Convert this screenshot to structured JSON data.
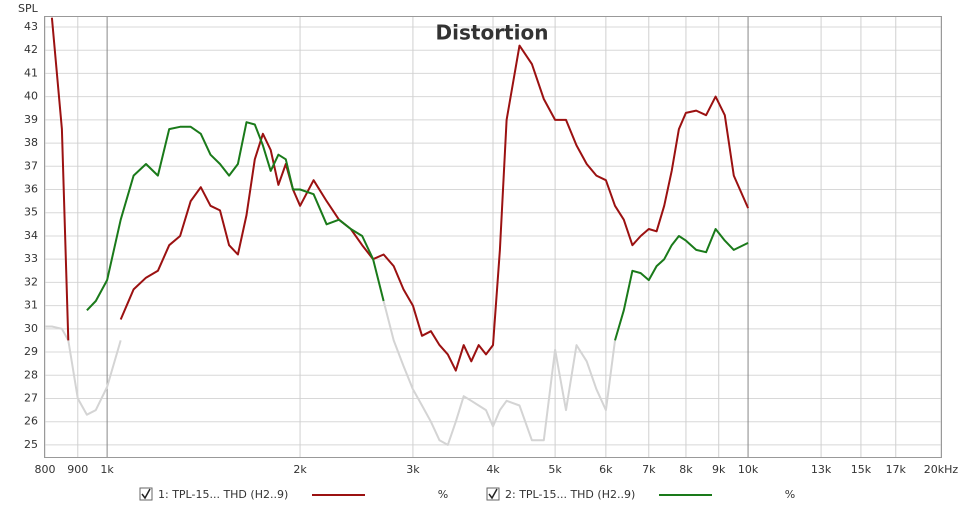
{
  "chart_data": {
    "type": "line",
    "title": "Distortion",
    "y_label": "SPL",
    "xscale": "log",
    "grid": true,
    "x": [
      800,
      820,
      850,
      870,
      900,
      930,
      960,
      1000,
      1050,
      1100,
      1150,
      1200,
      1250,
      1300,
      1350,
      1400,
      1450,
      1500,
      1550,
      1600,
      1650,
      1700,
      1750,
      1800,
      1850,
      1900,
      1950,
      2000,
      2100,
      2200,
      2300,
      2400,
      2500,
      2600,
      2700,
      2800,
      2900,
      3000,
      3100,
      3200,
      3300,
      3400,
      3500,
      3600,
      3700,
      3800,
      3900,
      4000,
      4100,
      4200,
      4400,
      4600,
      4800,
      5000,
      5200,
      5400,
      5600,
      5800,
      6000,
      6200,
      6400,
      6600,
      6800,
      7000,
      7200,
      7400,
      7600,
      7800,
      8000,
      8300,
      8600,
      8900,
      9200,
      9500,
      10000
    ],
    "series": [
      {
        "name": "1: TPL-15... THD (H2..9)",
        "unit": "%",
        "color": "#9b1111",
        "values": [
          null,
          43.4,
          38.6,
          29.5,
          null,
          null,
          null,
          null,
          30.4,
          31.7,
          32.2,
          32.5,
          33.6,
          34,
          35.5,
          36.1,
          35.3,
          35.1,
          33.6,
          33.2,
          34.9,
          37.3,
          38.4,
          37.7,
          36.2,
          37.1,
          36,
          35.3,
          36.4,
          35.5,
          34.7,
          34.3,
          33.6,
          33,
          33.2,
          32.7,
          31.7,
          31,
          29.7,
          29.9,
          29.3,
          28.9,
          28.2,
          29.3,
          28.6,
          29.3,
          28.9,
          29.3,
          33.4,
          39,
          42.2,
          41.4,
          39.9,
          39,
          39,
          37.9,
          37.1,
          36.6,
          36.4,
          35.3,
          34.7,
          33.6,
          34,
          34.3,
          34.2,
          35.3,
          36.8,
          38.6,
          39.3,
          39.4,
          39.2,
          40,
          39.2,
          36.6,
          35.2
        ]
      },
      {
        "name": "2: TPL-15... THD (H2..9)",
        "unit": "%",
        "color": "#1a7a1a",
        "values": [
          null,
          null,
          null,
          null,
          null,
          30.8,
          31.2,
          32.1,
          34.7,
          36.6,
          37.1,
          36.6,
          38.6,
          38.7,
          38.7,
          38.4,
          37.5,
          37.1,
          36.6,
          37.1,
          38.9,
          38.8,
          37.9,
          36.8,
          37.5,
          37.3,
          36,
          36,
          35.8,
          34.5,
          34.7,
          34.3,
          34,
          33,
          31.2,
          null,
          null,
          null,
          null,
          null,
          null,
          null,
          null,
          null,
          null,
          null,
          null,
          null,
          null,
          null,
          null,
          null,
          null,
          null,
          null,
          null,
          null,
          null,
          null,
          29.5,
          30.8,
          32.5,
          32.4,
          32.1,
          32.7,
          33,
          33.6,
          34,
          33.8,
          33.4,
          33.3,
          34.3,
          33.8,
          33.4,
          33.7
        ]
      },
      {
        "color": "#d4d4d4",
        "values": [
          30.1,
          30.1,
          30,
          29.5,
          27,
          26.3,
          26.5,
          27.5,
          29.5,
          null,
          null,
          null,
          null,
          null,
          null,
          null,
          null,
          null,
          null,
          null,
          null,
          null,
          null,
          null,
          null,
          null,
          null,
          null,
          null,
          null,
          null,
          null,
          null,
          null,
          31.2,
          29.5,
          28.4,
          27.4,
          26.7,
          26,
          25.2,
          25,
          26,
          27.1,
          26.9,
          26.7,
          26.5,
          25.8,
          26.5,
          26.9,
          26.7,
          25.2,
          25.2,
          29.1,
          26.5,
          29.3,
          28.6,
          27.4,
          26.5,
          29.5,
          null,
          null,
          null,
          null,
          null,
          null,
          null,
          null,
          null,
          null,
          null,
          null,
          null,
          null,
          null
        ]
      }
    ],
    "xlim": [
      800,
      20000
    ],
    "ylim": [
      24.48,
      43.43
    ],
    "xticks": [
      800,
      900,
      {
        "value": 1000,
        "label": "1k"
      },
      {
        "value": 2000,
        "label": "2k"
      },
      {
        "value": 3000,
        "label": "3k"
      },
      {
        "value": 4000,
        "label": "4k"
      },
      {
        "value": 5000,
        "label": "5k"
      },
      {
        "value": 6000,
        "label": "6k"
      },
      {
        "value": 7000,
        "label": "7k"
      },
      {
        "value": 8000,
        "label": "8k"
      },
      {
        "value": 9000,
        "label": "9k"
      },
      {
        "value": 10000,
        "label": "10k"
      },
      {
        "value": 13000,
        "label": "13k"
      },
      {
        "value": 15000,
        "label": "15k"
      },
      {
        "value": 17000,
        "label": "17k"
      },
      {
        "value": 20000,
        "label": "20kHz"
      }
    ],
    "yticks": [
      25,
      26,
      27,
      28,
      29,
      30,
      31,
      32,
      33,
      34,
      35,
      36,
      37,
      38,
      39,
      40,
      41,
      42,
      43
    ]
  }
}
